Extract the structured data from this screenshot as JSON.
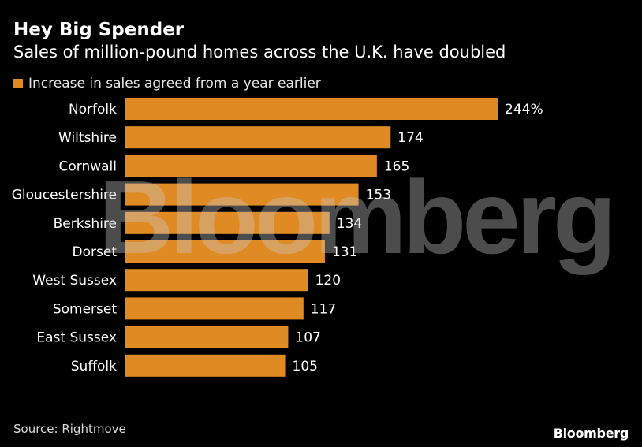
{
  "header": {
    "title": "Hey Big Spender",
    "subtitle": "Sales of million-pound homes across the U.K. have doubled"
  },
  "legend": {
    "label": "Increase in sales agreed from a year earlier",
    "color": "#e08a24"
  },
  "chart_data": {
    "type": "bar",
    "orientation": "horizontal",
    "title": "Hey Big Spender",
    "subtitle": "Sales of million-pound homes across the U.K. have doubled",
    "categories": [
      "Norfolk",
      "Wiltshire",
      "Cornwall",
      "Gloucestershire",
      "Berkshire",
      "Dorset",
      "West Sussex",
      "Somerset",
      "East Sussex",
      "Suffolk"
    ],
    "values": [
      244,
      174,
      165,
      153,
      134,
      131,
      120,
      117,
      107,
      105
    ],
    "value_labels": [
      "244%",
      "174",
      "165",
      "153",
      "134",
      "131",
      "120",
      "117",
      "107",
      "105"
    ],
    "series": [
      {
        "name": "Increase in sales agreed from a year earlier",
        "values": [
          244,
          174,
          165,
          153,
          134,
          131,
          120,
          117,
          107,
          105
        ]
      }
    ],
    "xlim": [
      0,
      244
    ],
    "xlabel": "",
    "ylabel": "",
    "grid": false,
    "legend_position": "top-left"
  },
  "footer": {
    "source": "Source: Rightmove",
    "logo": "Bloomberg"
  },
  "watermark": "Bloomberg"
}
